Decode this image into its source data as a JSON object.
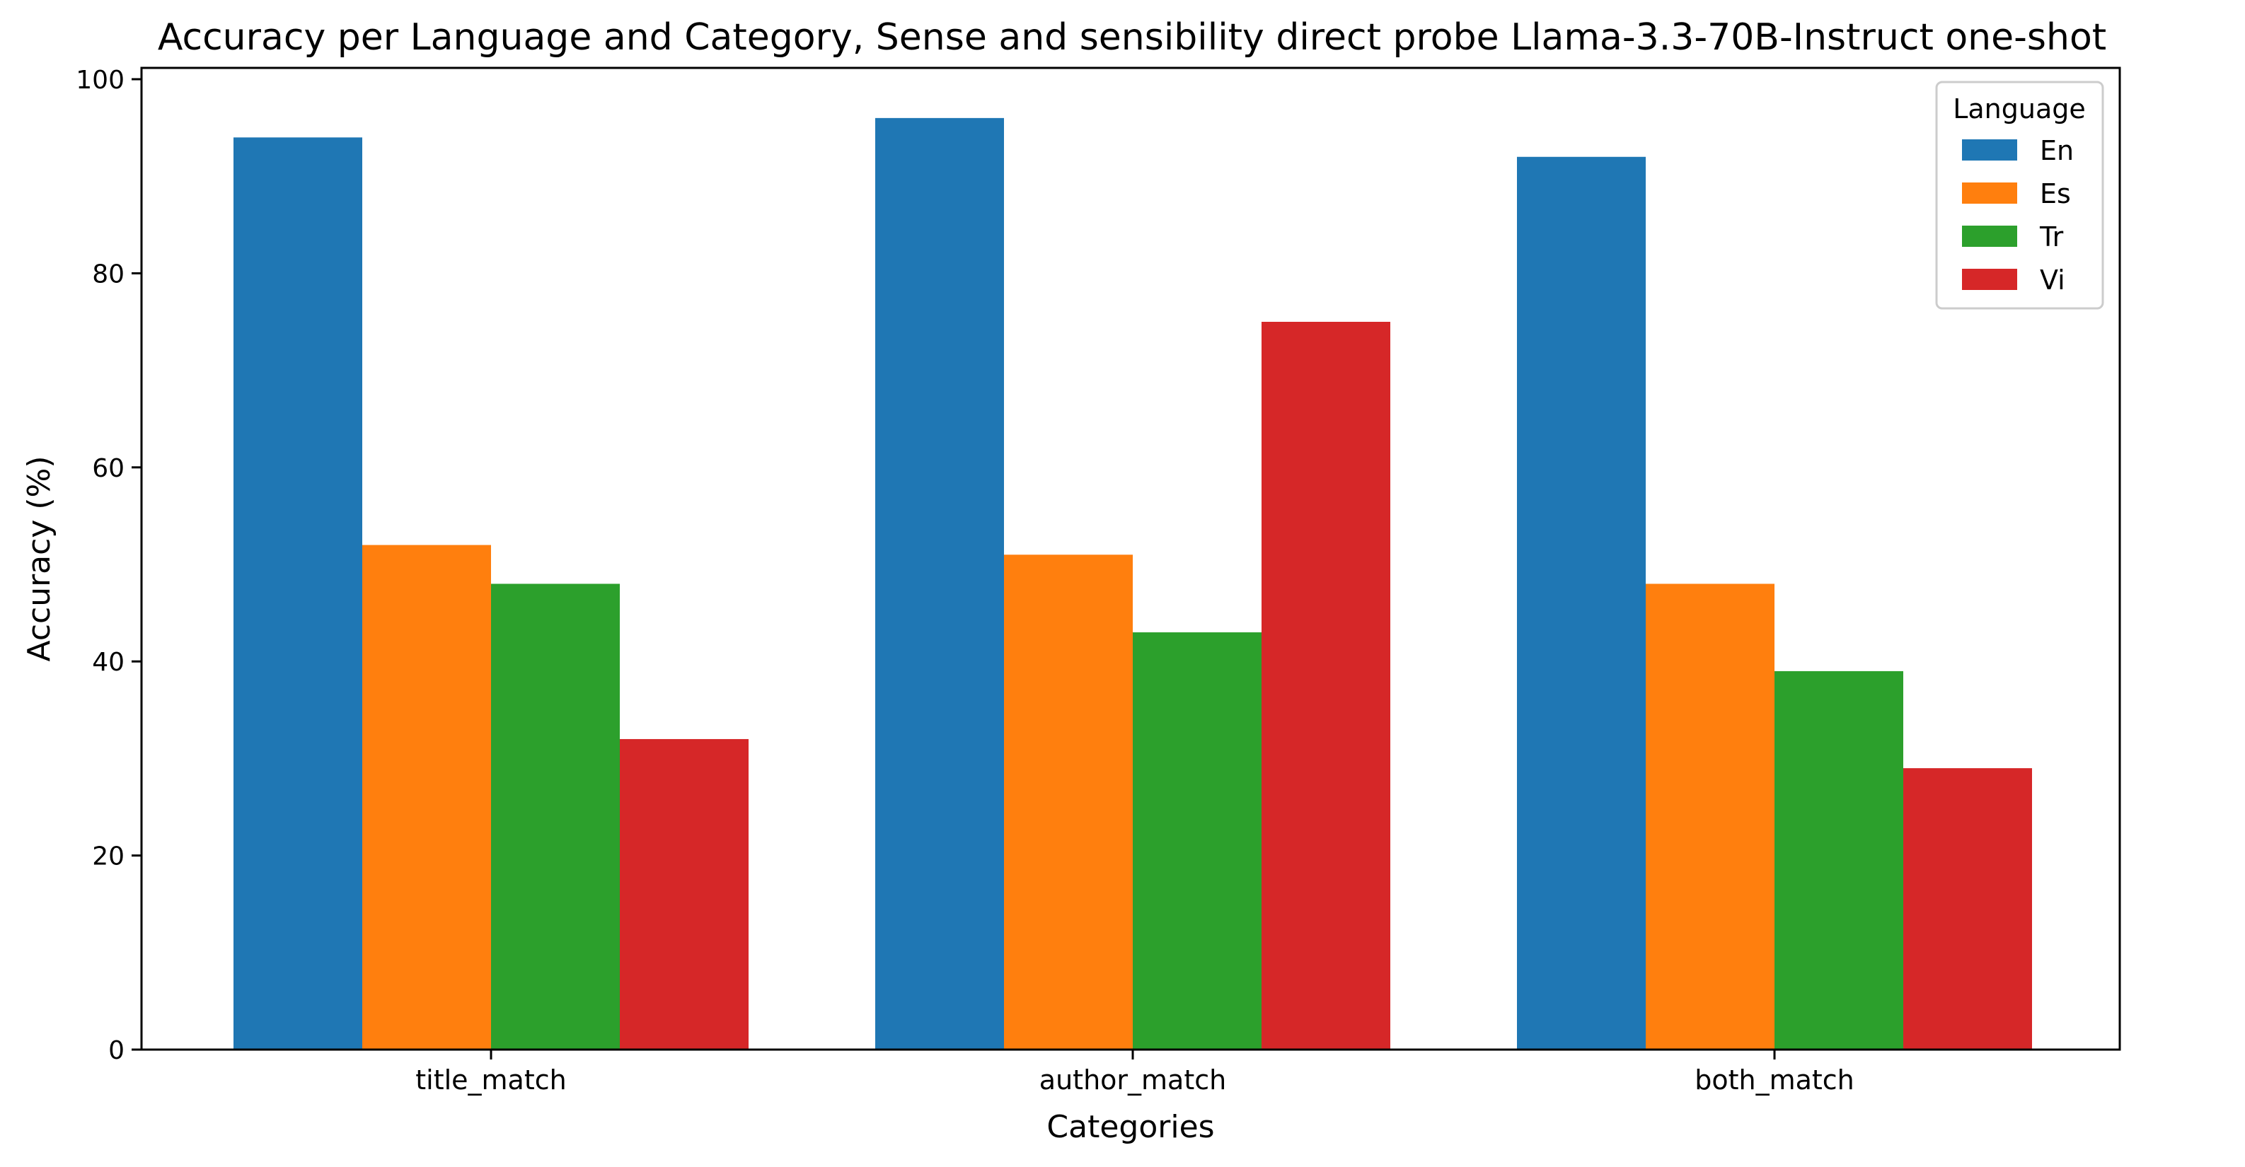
{
  "chart_data": {
    "type": "bar",
    "title": "Accuracy per Language and Category, Sense and sensibility direct probe Llama-3.3-70B-Instruct one-shot",
    "xlabel": "Categories",
    "ylabel": "Accuracy (%)",
    "categories": [
      "title_match",
      "author_match",
      "both_match"
    ],
    "series": [
      {
        "name": "En",
        "color": "#1f77b4",
        "values": [
          94,
          96,
          92
        ]
      },
      {
        "name": "Es",
        "color": "#ff7f0e",
        "values": [
          52,
          51,
          48
        ]
      },
      {
        "name": "Tr",
        "color": "#2ca02c",
        "values": [
          48,
          43,
          39
        ]
      },
      {
        "name": "Vi",
        "color": "#d62728",
        "values": [
          32,
          75,
          29
        ]
      }
    ],
    "ylim": [
      0,
      100
    ],
    "yticks": [
      0,
      20,
      40,
      60,
      80,
      100
    ],
    "grid": false,
    "legend": {
      "title": "Language",
      "position": "top-right"
    }
  }
}
